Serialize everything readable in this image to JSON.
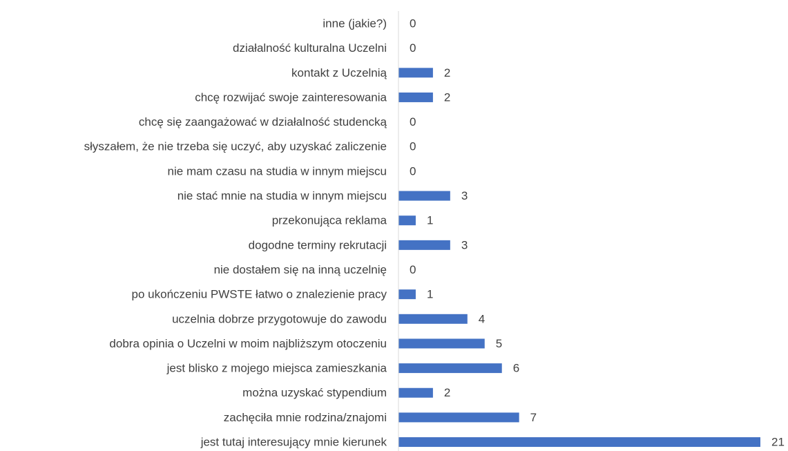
{
  "chart_data": {
    "type": "hbar",
    "categories": [
      "inne (jakie?)",
      "działalność kulturalna Uczelni",
      "kontakt z Uczelnią",
      "chcę rozwijać swoje zainteresowania",
      "chcę się zaangażować w działalność studencką",
      "słyszałem, że nie trzeba się uczyć, aby uzyskać zaliczenie",
      "nie mam czasu na studia w innym miejscu",
      "nie stać mnie na studia w innym miejscu",
      "przekonująca reklama",
      "dogodne terminy rekrutacji",
      "nie dostałem się na inną uczelnię",
      "po ukończeniu PWSTE łatwo o znalezienie pracy",
      "uczelnia dobrze przygotowuje do zawodu",
      "dobra opinia o Uczelni w moim najbliższym otoczeniu",
      "jest blisko z mojego miejsca zamieszkania",
      "można uzyskać stypendium",
      "zachęciła mnie rodzina/znajomi",
      "jest tutaj interesujący mnie kierunek"
    ],
    "values": [
      0,
      0,
      2,
      2,
      0,
      0,
      0,
      3,
      1,
      3,
      0,
      1,
      4,
      5,
      6,
      2,
      7,
      21
    ],
    "color": "#4472c4",
    "xlim": [
      0,
      21
    ]
  }
}
